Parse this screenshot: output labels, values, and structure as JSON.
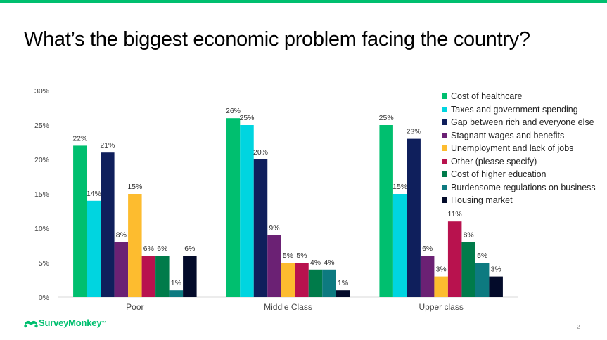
{
  "header": {
    "title": "What’s the biggest economic problem facing the country?"
  },
  "footer": {
    "logo_text": "SurveyMonkey",
    "logo_tm": "™",
    "page_number": "2"
  },
  "colors": {
    "accent": "#00bf6f"
  },
  "chart_data": {
    "type": "bar",
    "title": "",
    "xlabel": "",
    "ylabel": "",
    "ylim": [
      0,
      30
    ],
    "yticks": [
      "0%",
      "5%",
      "10%",
      "15%",
      "20%",
      "25%",
      "30%"
    ],
    "grid": false,
    "legend_position": "right",
    "categories": [
      "Poor",
      "Middle Class",
      "Upper class"
    ],
    "series": [
      {
        "name": "Cost of healthcare",
        "color": "#00bf6f",
        "values": [
          22,
          26,
          25
        ],
        "labels": [
          "22%",
          "26%",
          "25%"
        ]
      },
      {
        "name": "Taxes and government spending",
        "color": "#00d5e0",
        "values": [
          14,
          25,
          15
        ],
        "labels": [
          "14%",
          "25%",
          "15%"
        ]
      },
      {
        "name": "Gap between rich and everyone else",
        "color": "#0f1f5c",
        "values": [
          21,
          20,
          23
        ],
        "labels": [
          "21%",
          "20%",
          "23%"
        ]
      },
      {
        "name": "Stagnant wages and benefits",
        "color": "#6b2174",
        "values": [
          8,
          9,
          6
        ],
        "labels": [
          "8%",
          "9%",
          "6%"
        ]
      },
      {
        "name": "Unemployment and lack of jobs",
        "color": "#fdbc2f",
        "values": [
          15,
          5,
          3
        ],
        "labels": [
          "15%",
          "5%",
          "3%"
        ]
      },
      {
        "name": "Other (please specify)",
        "color": "#b8124e",
        "values": [
          6,
          5,
          11
        ],
        "labels": [
          "6%",
          "5%",
          "11%"
        ]
      },
      {
        "name": "Cost of higher education",
        "color": "#007b4a",
        "values": [
          6,
          4,
          8
        ],
        "labels": [
          "6%",
          "4%",
          "8%"
        ]
      },
      {
        "name": "Burdensome regulations on business",
        "color": "#0d7a80",
        "values": [
          1,
          4,
          5
        ],
        "labels": [
          "1%",
          "4%",
          "5%"
        ]
      },
      {
        "name": "Housing market",
        "color": "#030b2a",
        "values": [
          6,
          1,
          3
        ],
        "labels": [
          "6%",
          "1%",
          "3%"
        ]
      }
    ]
  }
}
